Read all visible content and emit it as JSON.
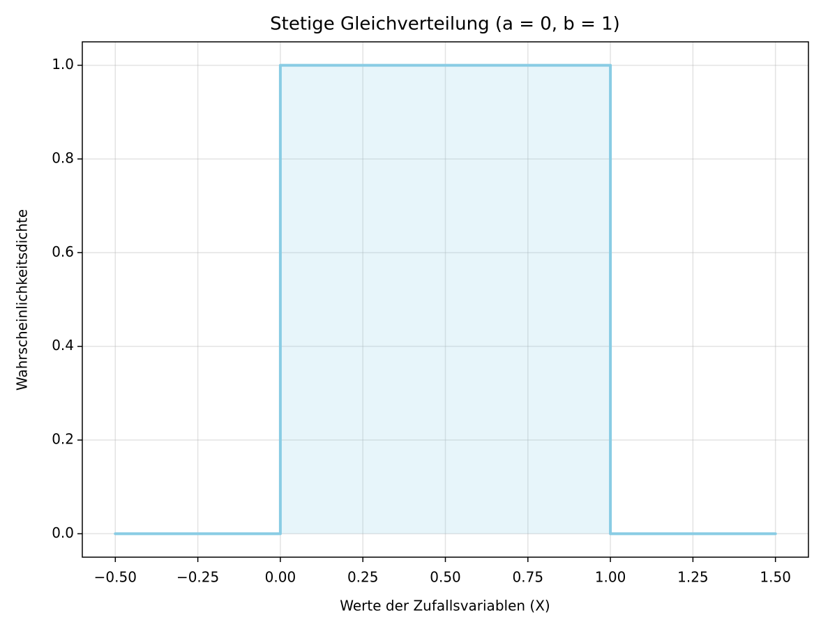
{
  "chart_data": {
    "type": "line",
    "title": "Stetige Gleichverteilung (a = 0, b = 1)",
    "xlabel": "Werte der Zufallsvariablen (X)",
    "ylabel": "Wahrscheinlichkeitsdichte",
    "x": [
      -0.5,
      0,
      0,
      1,
      1,
      1.5
    ],
    "series": [
      {
        "color": "#89cce4",
        "values": [
          0,
          0,
          1,
          1,
          0,
          0
        ]
      }
    ],
    "fill": true,
    "fill_opacity": 0.2,
    "xlim": [
      -0.6,
      1.6
    ],
    "ylim": [
      -0.05,
      1.05
    ],
    "xticks": [
      {
        "value": -0.5,
        "label": "−0.50"
      },
      {
        "value": -0.25,
        "label": "−0.25"
      },
      {
        "value": 0,
        "label": "0.00"
      },
      0.25,
      {
        "value": 0.5,
        "label": "0.50"
      },
      0.75,
      {
        "value": 1,
        "label": "1.00"
      },
      1.25,
      {
        "value": 1.5,
        "label": "1.50"
      }
    ],
    "yticks": [
      {
        "value": 0,
        "label": "0.0"
      },
      0.2,
      0.4,
      0.6,
      0.8,
      {
        "value": 1,
        "label": "1.0"
      }
    ],
    "grid": true
  }
}
